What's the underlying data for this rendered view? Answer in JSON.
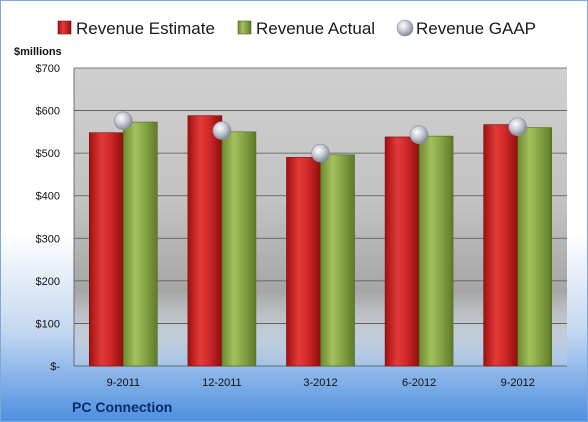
{
  "company": "PC Connection",
  "chart_data": {
    "type": "bar",
    "ylabel": "$millions",
    "ylim": [
      0,
      700
    ],
    "yticks": [
      0,
      100,
      200,
      300,
      400,
      500,
      600,
      700
    ],
    "ytick_labels": [
      "$-",
      "$100",
      "$200",
      "$300",
      "$400",
      "$500",
      "$600",
      "$700"
    ],
    "categories": [
      "9-2011",
      "12-2011",
      "3-2012",
      "6-2012",
      "9-2012"
    ],
    "legend_position": "top",
    "grid": true,
    "series": [
      {
        "name": "Revenue Estimate",
        "kind": "bar",
        "color": "#d42a2a",
        "values": [
          548,
          588,
          490,
          538,
          567
        ]
      },
      {
        "name": "Revenue Actual",
        "kind": "bar",
        "color": "#8aa84a",
        "values": [
          573,
          550,
          496,
          540,
          560
        ]
      },
      {
        "name": "Revenue GAAP",
        "kind": "marker",
        "color": "#b8bcc8",
        "values": [
          576,
          553,
          500,
          543,
          562
        ]
      }
    ]
  }
}
